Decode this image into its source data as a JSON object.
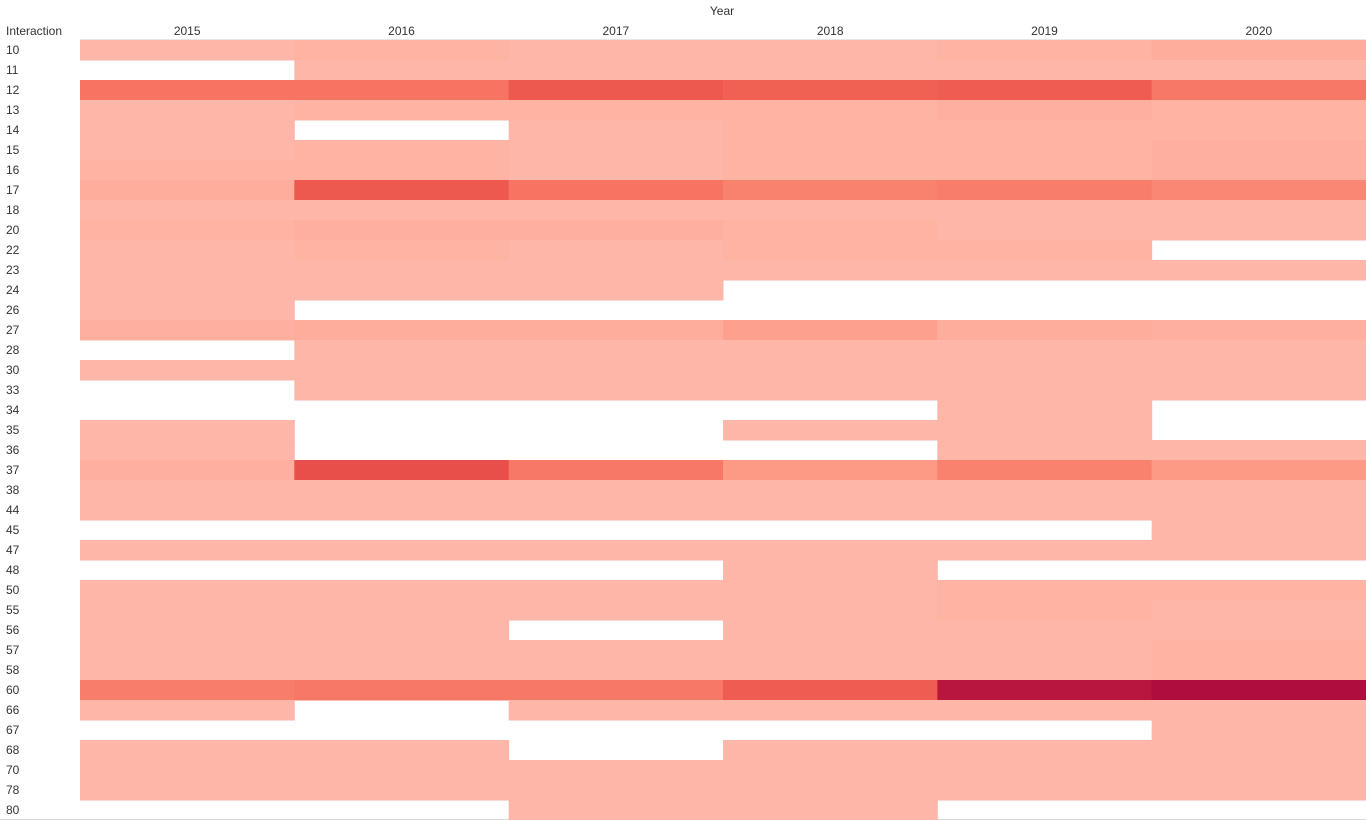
{
  "chart_data": {
    "type": "heatmap",
    "column_header": "Year",
    "row_header": "Interaction",
    "columns": [
      "2015",
      "2016",
      "2017",
      "2018",
      "2019",
      "2020"
    ],
    "rows": [
      "10",
      "11",
      "12",
      "13",
      "14",
      "15",
      "16",
      "17",
      "18",
      "20",
      "22",
      "23",
      "24",
      "26",
      "27",
      "28",
      "30",
      "33",
      "34",
      "35",
      "36",
      "37",
      "38",
      "44",
      "45",
      "47",
      "48",
      "50",
      "55",
      "56",
      "57",
      "58",
      "60",
      "66",
      "67",
      "68",
      "70",
      "78",
      "80"
    ],
    "values": [
      [
        2,
        3,
        2,
        2,
        3,
        5
      ],
      [
        null,
        2,
        2,
        2,
        2,
        2
      ],
      [
        18,
        18,
        24,
        22,
        23,
        17
      ],
      [
        2,
        3,
        3,
        3,
        4,
        3
      ],
      [
        2,
        null,
        2,
        3,
        3,
        3
      ],
      [
        2,
        3,
        2,
        3,
        3,
        4
      ],
      [
        3,
        3,
        2,
        3,
        3,
        4
      ],
      [
        5,
        24,
        18,
        15,
        16,
        14
      ],
      [
        2,
        2,
        2,
        2,
        2,
        2
      ],
      [
        3,
        4,
        4,
        3,
        2,
        2
      ],
      [
        2,
        3,
        2,
        3,
        3,
        null
      ],
      [
        2,
        2,
        2,
        2,
        2,
        2
      ],
      [
        2,
        2,
        2,
        null,
        null,
        null
      ],
      [
        2,
        null,
        null,
        null,
        null,
        null
      ],
      [
        4,
        5,
        5,
        8,
        5,
        4
      ],
      [
        null,
        2,
        2,
        2,
        2,
        2
      ],
      [
        2,
        2,
        2,
        2,
        2,
        2
      ],
      [
        null,
        2,
        2,
        2,
        2,
        2
      ],
      [
        null,
        null,
        null,
        null,
        2,
        null
      ],
      [
        2,
        null,
        null,
        2,
        2,
        null
      ],
      [
        2,
        null,
        null,
        null,
        2,
        2
      ],
      [
        4,
        26,
        17,
        10,
        15,
        10
      ],
      [
        2,
        2,
        2,
        2,
        2,
        2
      ],
      [
        2,
        2,
        2,
        2,
        2,
        2
      ],
      [
        null,
        null,
        null,
        null,
        null,
        2
      ],
      [
        2,
        2,
        2,
        2,
        2,
        2
      ],
      [
        null,
        null,
        null,
        2,
        null,
        null
      ],
      [
        2,
        2,
        2,
        2,
        3,
        3
      ],
      [
        2,
        2,
        2,
        2,
        3,
        2
      ],
      [
        2,
        2,
        null,
        2,
        2,
        2
      ],
      [
        2,
        2,
        2,
        2,
        2,
        3
      ],
      [
        2,
        2,
        2,
        2,
        2,
        3
      ],
      [
        16,
        17,
        17,
        23,
        38,
        40
      ],
      [
        2,
        null,
        2,
        2,
        2,
        2
      ],
      [
        null,
        null,
        null,
        null,
        null,
        2
      ],
      [
        2,
        2,
        null,
        2,
        2,
        2
      ],
      [
        2,
        2,
        2,
        2,
        2,
        2
      ],
      [
        2,
        2,
        2,
        2,
        2,
        2
      ],
      [
        null,
        null,
        2,
        2,
        null,
        null
      ]
    ],
    "value_range": [
      0,
      40
    ],
    "color_scale": [
      "#ffbdb0",
      "#fc9a86",
      "#f56a58",
      "#e03c41",
      "#ae0d3d"
    ],
    "legend": "none",
    "grid": false
  }
}
